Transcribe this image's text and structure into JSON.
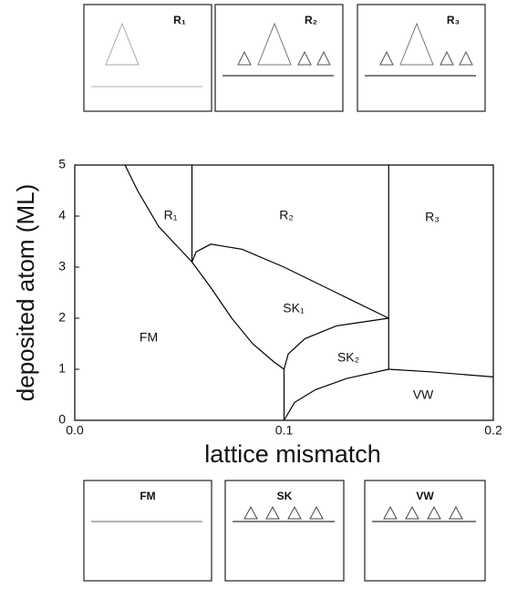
{
  "chart_data": {
    "type": "phase-diagram",
    "xlabel": "lattice mismatch",
    "ylabel": "deposited atom (ML)",
    "xlim": [
      0,
      0.2
    ],
    "ylim": [
      0,
      5
    ],
    "xticks": [
      {
        "value": 0,
        "label": "0.0"
      },
      0.1,
      0.2
    ],
    "yticks": [
      0,
      1,
      2,
      3,
      4,
      5
    ],
    "color": "#000000",
    "boundaries": [
      {
        "x": [
          0.024,
          0.03,
          0.04,
          0.056
        ],
        "values": [
          5,
          4.5,
          3.8,
          3.1
        ]
      },
      {
        "x": [
          0.056,
          0.056
        ],
        "values": [
          3.1,
          5
        ]
      },
      {
        "x": [
          0.056,
          0.065,
          0.075,
          0.085,
          0.095,
          0.1
        ],
        "values": [
          3.1,
          2.6,
          2.0,
          1.5,
          1.15,
          1.0
        ]
      },
      {
        "x": [
          0.056,
          0.058,
          0.065,
          0.08,
          0.1,
          0.125,
          0.15
        ],
        "values": [
          3.1,
          3.3,
          3.45,
          3.35,
          3.0,
          2.5,
          2.0
        ]
      },
      {
        "x": [
          0.1,
          0.1
        ],
        "values": [
          0,
          1
        ]
      },
      {
        "x": [
          0.1,
          0.102,
          0.11,
          0.125,
          0.15
        ],
        "values": [
          1.0,
          1.3,
          1.6,
          1.85,
          2.0
        ]
      },
      {
        "x": [
          0.15,
          0.15
        ],
        "values": [
          1,
          5
        ]
      },
      {
        "x": [
          0.1,
          0.105,
          0.115,
          0.13,
          0.15
        ],
        "values": [
          0,
          0.35,
          0.6,
          0.82,
          1.0
        ]
      },
      {
        "x": [
          0.15,
          0.17,
          0.2
        ],
        "values": [
          1.0,
          0.95,
          0.85
        ]
      }
    ],
    "regions": [
      "R₁",
      "R₂",
      "R₃",
      "SK₁",
      "SK₂",
      "FM",
      "VW"
    ]
  },
  "insets": {
    "top": [
      "R₁",
      "R₂",
      "R₃"
    ],
    "bottom": [
      "FM",
      "SK",
      "VW"
    ]
  }
}
